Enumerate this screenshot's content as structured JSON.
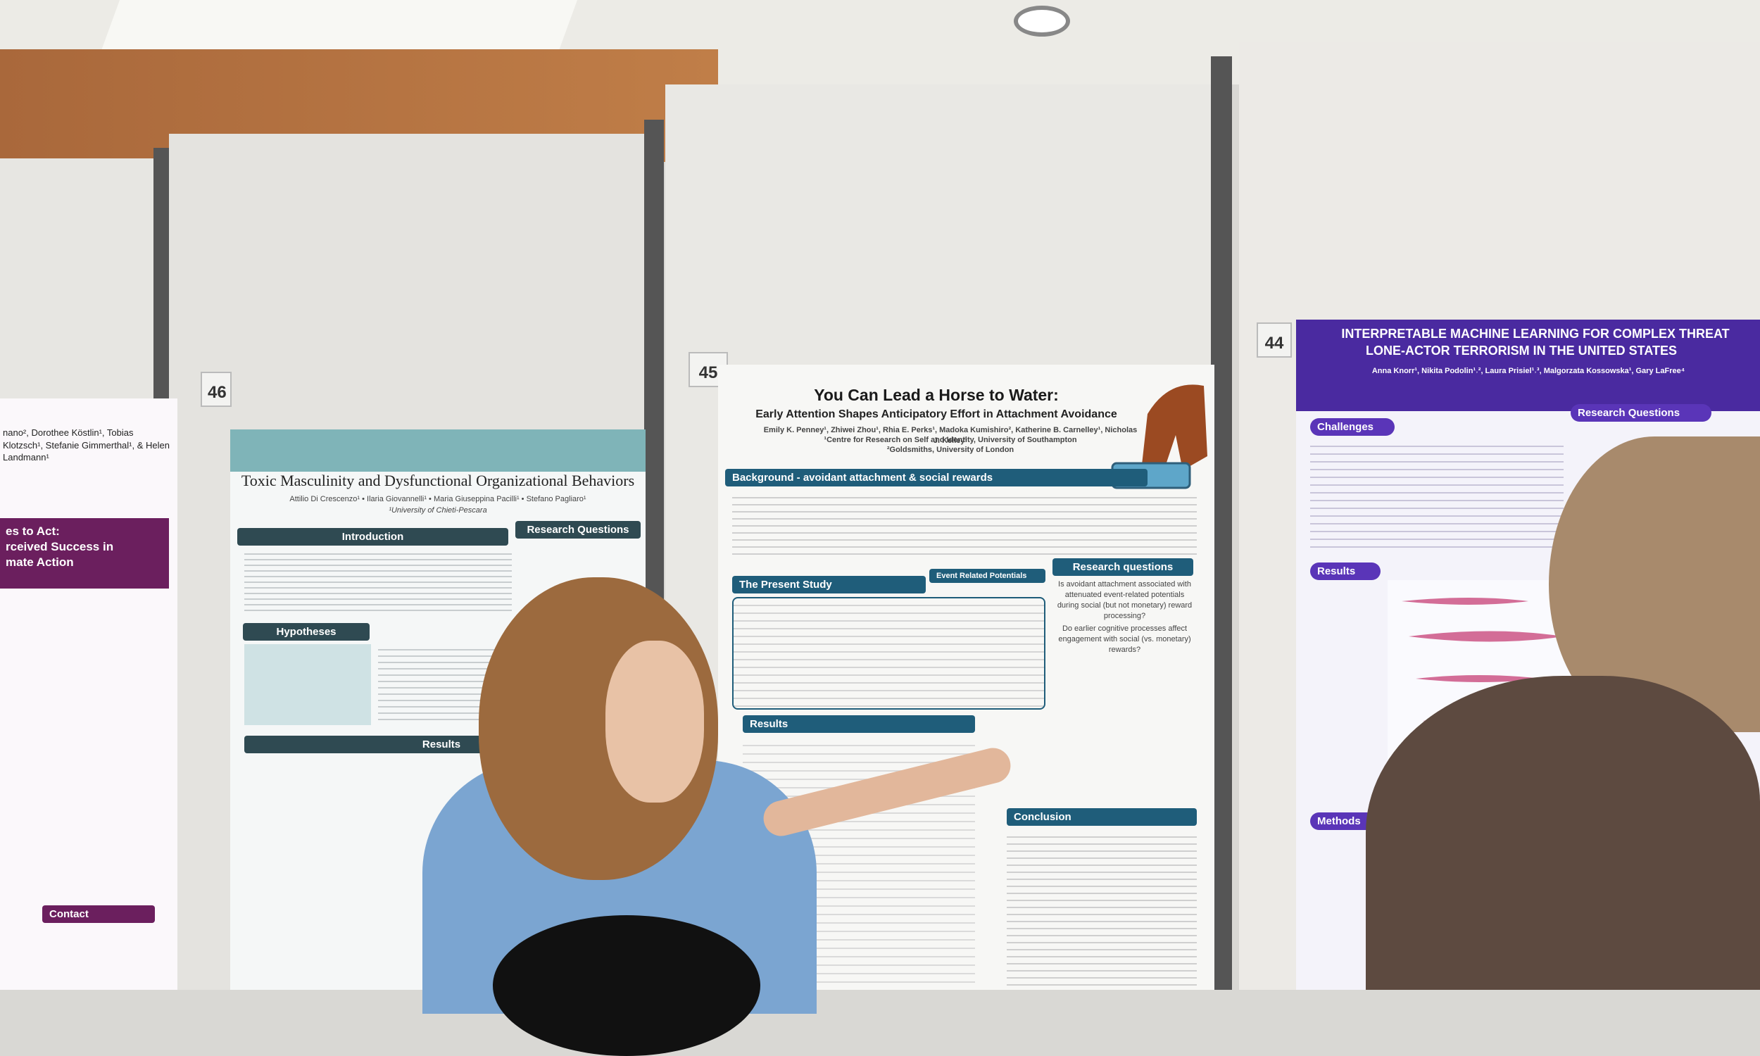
{
  "left_poster": {
    "authors": "nano², Dorothee Köstlin¹, Tobias Klotzsch¹, Stefanie Gimmerthal¹, & Helen Landmann¹",
    "title_lines": [
      "es to Act:",
      "rceived Success in",
      "mate Action"
    ],
    "contact": "Contact"
  },
  "posters": [
    {
      "number": "46",
      "title": "Toxic Masculinity and Dysfunctional Organizational Behaviors",
      "authors": "Attilio Di Crescenzo¹ • Ilaria Giovannelli¹ • Maria Giuseppina Pacilli¹ • Stefano Pagliaro¹",
      "affiliation": "¹University of Chieti-Pescara",
      "sections": [
        "Introduction",
        "Research Questions",
        "Hypotheses",
        "Results"
      ]
    },
    {
      "number": "45",
      "title": "You Can Lead a Horse to Water:",
      "subtitle": "Early Attention Shapes Anticipatory Effort in Attachment Avoidance",
      "authors": "Emily K. Penney¹, Zhiwei Zhou¹, Rhia E. Perks¹, Madoka Kumishiro², Katherine B. Carnelley¹, Nicholas J. Kelley¹",
      "affiliations": [
        "¹Centre for Research on Self and Identity, University of Southampton",
        "²Goldsmiths, University of London"
      ],
      "sections": [
        "Background - avoidant attachment & social rewards",
        "The Present Study",
        "Event Related Potentials",
        "Research questions",
        "Results",
        "Conclusion"
      ],
      "research_questions": [
        "Is avoidant attachment associated with attenuated event-related potentials during social (but not monetary) reward processing?",
        "Do earlier cognitive processes affect engagement with social (vs. monetary) rewards?"
      ]
    },
    {
      "number": "44",
      "title": "Interpretable Machine Learning for Complex Threat",
      "subtitle": "Lone-Actor Terrorism in the United States",
      "authors": "Anna Knorr¹, Nikita Podolin¹˒², Laura Prisiel¹˒³, Malgorzata Kossowska¹, Gary LaFree⁴",
      "sections": [
        "Challenges",
        "Research Questions",
        "Results",
        "Methods"
      ]
    }
  ]
}
